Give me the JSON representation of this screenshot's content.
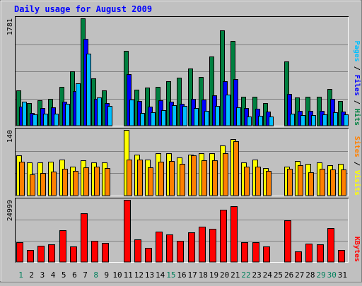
{
  "chart_data": [
    {
      "type": "bar",
      "title": "Daily usage for August 2009",
      "ylabel": "Pages / Files / Hits",
      "ylabel_parts": [
        "Pages",
        "Files",
        "Hits"
      ],
      "ymax_label": "1781",
      "ylim": [
        0,
        1781
      ],
      "categories": [
        "1",
        "2",
        "3",
        "4",
        "5",
        "6",
        "7",
        "8",
        "9",
        "10",
        "11",
        "12",
        "13",
        "14",
        "15",
        "16",
        "17",
        "18",
        "19",
        "20",
        "21",
        "22",
        "23",
        "24",
        "25",
        "26",
        "27",
        "28",
        "29",
        "30",
        "31"
      ],
      "series": [
        {
          "name": "Hits",
          "color": "#008040",
          "values": [
            580,
            375,
            420,
            450,
            640,
            900,
            1781,
            780,
            580,
            0,
            1240,
            600,
            630,
            650,
            740,
            800,
            950,
            810,
            1150,
            1580,
            1410,
            485,
            480,
            370,
            0,
            1070,
            465,
            475,
            480,
            605,
            410
          ]
        },
        {
          "name": "Files",
          "color": "#0000ff",
          "values": [
            315,
            215,
            290,
            310,
            400,
            570,
            1440,
            440,
            380,
            0,
            850,
            410,
            320,
            420,
            400,
            360,
            440,
            430,
            500,
            740,
            770,
            290,
            280,
            240,
            0,
            530,
            250,
            250,
            250,
            450,
            240
          ]
        },
        {
          "name": "Pages",
          "color": "#00bfff",
          "values": [
            395,
            190,
            205,
            205,
            360,
            700,
            1200,
            465,
            330,
            0,
            430,
            210,
            225,
            260,
            340,
            330,
            290,
            250,
            330,
            510,
            310,
            155,
            165,
            155,
            0,
            205,
            170,
            175,
            190,
            220,
            185
          ]
        }
      ]
    },
    {
      "type": "bar",
      "ylabel": "Sites / Visits",
      "ylabel_parts": [
        "Sites",
        "Visits"
      ],
      "ymax_label": "140",
      "ylim": [
        0,
        140
      ],
      "categories": [
        "1",
        "2",
        "3",
        "4",
        "5",
        "6",
        "7",
        "8",
        "9",
        "10",
        "11",
        "12",
        "13",
        "14",
        "15",
        "16",
        "17",
        "18",
        "19",
        "20",
        "21",
        "22",
        "23",
        "24",
        "25",
        "26",
        "27",
        "28",
        "29",
        "30",
        "31"
      ],
      "series": [
        {
          "name": "Visits",
          "color": "#ffff00",
          "values": [
            86,
            70,
            70,
            72,
            77,
            62,
            75,
            70,
            70,
            0,
            140,
            87,
            77,
            90,
            90,
            82,
            88,
            90,
            90,
            107,
            120,
            70,
            77,
            58,
            0,
            62,
            74,
            68,
            70,
            64,
            68
          ]
        },
        {
          "name": "Sites",
          "color": "#ff8000",
          "values": [
            73,
            45,
            48,
            51,
            57,
            52,
            60,
            61,
            59,
            0,
            77,
            77,
            60,
            73,
            74,
            67,
            86,
            75,
            75,
            90,
            116,
            62,
            62,
            53,
            0,
            57,
            65,
            50,
            57,
            55,
            55
          ]
        }
      ]
    },
    {
      "type": "bar",
      "ylabel": "KBytes",
      "ymax_label": "24999",
      "ylim": [
        0,
        24999
      ],
      "categories": [
        "1",
        "2",
        "3",
        "4",
        "5",
        "6",
        "7",
        "8",
        "9",
        "10",
        "11",
        "12",
        "13",
        "14",
        "15",
        "16",
        "17",
        "18",
        "19",
        "20",
        "21",
        "22",
        "23",
        "24",
        "25",
        "26",
        "27",
        "28",
        "29",
        "30",
        "31"
      ],
      "series": [
        {
          "name": "KBytes",
          "color": "#ff0000",
          "values": [
            7850,
            4800,
            6600,
            7000,
            12650,
            6200,
            19550,
            8650,
            7600,
            0,
            24999,
            9000,
            5800,
            12100,
            11200,
            8600,
            11800,
            14200,
            13450,
            20950,
            22350,
            7900,
            7950,
            6300,
            0,
            16900,
            4400,
            7300,
            7150,
            13700,
            4800
          ]
        }
      ]
    }
  ],
  "weekend_days": [
    1,
    8,
    15,
    22,
    29,
    30
  ],
  "colors": {
    "title": "#0000ff",
    "plot_bg": "#c0c0c0",
    "gridline": "#808080",
    "day_normal": "#000000",
    "day_weekend": "#00805c"
  }
}
